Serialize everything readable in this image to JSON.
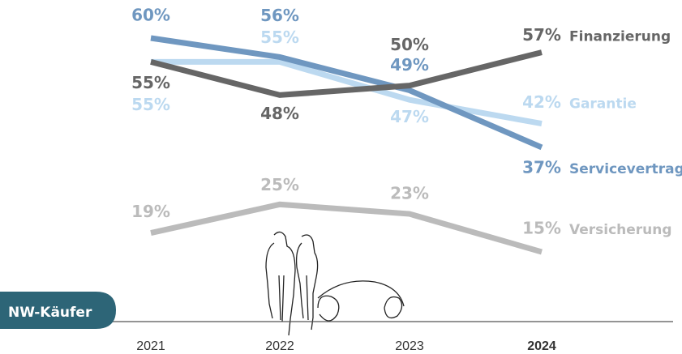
{
  "chart_data": {
    "type": "line",
    "categories": [
      "2021",
      "2022",
      "2023",
      "2024"
    ],
    "series": [
      {
        "name": "Finanzierung",
        "color": "#666666",
        "values": [
          55,
          48,
          50,
          57
        ],
        "value_labels": [
          "55%",
          "48%",
          "50%",
          "57%"
        ]
      },
      {
        "name": "Garantie",
        "color": "#bcd9f0",
        "values": [
          55,
          55,
          47,
          42
        ],
        "value_labels": [
          "55%",
          "55%",
          "47%",
          "42%"
        ]
      },
      {
        "name": "Servicevertrag",
        "color": "#6f97c0",
        "values": [
          60,
          56,
          49,
          37
        ],
        "value_labels": [
          "60%",
          "56%",
          "49%",
          "37%"
        ]
      },
      {
        "name": "Versicherung",
        "color": "#bbbbbb",
        "values": [
          19,
          25,
          23,
          15
        ],
        "value_labels": [
          "19%",
          "25%",
          "23%",
          "15%"
        ]
      }
    ],
    "group_label": "NW-Käufer"
  }
}
